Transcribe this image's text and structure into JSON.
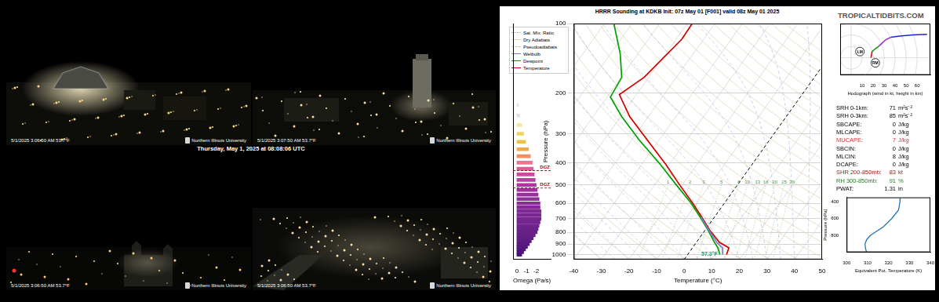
{
  "header": {
    "caption": "Thursday, May 1, 2025 at 08:08:06 UTC"
  },
  "webcams": [
    {
      "timestamp": "5/1/2025 3:06:50 AM 53.7°F",
      "logo": "Northern Illinois University"
    },
    {
      "timestamp": "5/1/2025 3:07:50 AM 53.7°F",
      "logo": "Northern Illinois University"
    },
    {
      "timestamp": "5/1/2025 3:06:50 AM 53.7°F",
      "logo": "Northern Illinois University"
    },
    {
      "timestamp": "5/1/2025 3:06:50 AM 53.7°F",
      "logo": "Northern Illinois University"
    }
  ],
  "sounding": {
    "site": "TROPICALTIDBITS.COM",
    "stats": [
      {
        "label": "SRH 0-1km:",
        "value": 71,
        "unit": "m²s⁻²"
      },
      {
        "label": "SRH 0-3km:",
        "value": 85,
        "unit": "m²s⁻²"
      },
      {
        "label": "SBCAPE:",
        "value": 0,
        "unit": "J/kg"
      },
      {
        "label": "MLCAPE:",
        "value": 0,
        "unit": "J/kg"
      },
      {
        "label": "MUCAPE:",
        "value": 7,
        "unit": "J/kg",
        "color": "#e03030"
      },
      {
        "label": "SBCIN:",
        "value": 0,
        "unit": "J/kg"
      },
      {
        "label": "MLCIN:",
        "value": 8,
        "unit": "J/kg"
      },
      {
        "label": "DCAPE:",
        "value": 0,
        "unit": "J/kg"
      },
      {
        "label": "SHR 200-850mb:",
        "value": 83,
        "unit": "kt",
        "color": "#a02020"
      },
      {
        "label": "RH 300-850mb:",
        "value": 91,
        "unit": "%",
        "color": "#208020"
      },
      {
        "label": "PWAT:",
        "value": 1.31,
        "unit": "in"
      }
    ]
  },
  "chart_data": [
    {
      "type": "skewt",
      "title": "HRRR Sounding at KDKB Init: 07z May 01 [F001] valid 08z May 01 2025",
      "x_label": "Temperature (°C)",
      "y_label": "Pressure (hPa)",
      "xlim": [
        -40,
        50
      ],
      "xticks": [
        -40,
        -30,
        -20,
        -10,
        0,
        10,
        20,
        30,
        40,
        50
      ],
      "ylim": [
        1050,
        100
      ],
      "yticks": [
        100,
        200,
        300,
        400,
        500,
        600,
        700,
        800,
        900,
        1000
      ],
      "log": "y",
      "grid": true,
      "legend": "upper left",
      "reference_lines": [
        {
          "name": "Sat. Mix. Ratio",
          "color": "#8fbf8f",
          "line_style": "dotted"
        },
        {
          "name": "Dry Adiabats",
          "color": "#e2cfa8",
          "line_style": "solid"
        },
        {
          "name": "Pseudoadiabats",
          "color": "#b4c0dc",
          "line_style": "dashed"
        }
      ],
      "mixing_ratio_lines": [
        1,
        2,
        3,
        5,
        8,
        10,
        13,
        16,
        20,
        25,
        30
      ],
      "annotation": "57.3°F",
      "series": [
        {
          "name": "Wetbulb",
          "color": "#7b7bd8",
          "x": [
            -4.9,
            1.5,
            7.4,
            10.9,
            12.7
          ],
          "y": [
            688,
            786,
            886,
            935,
            1000
          ]
        },
        {
          "name": "Dewpoint",
          "color": "#00a000",
          "x": [
            -86.6,
            -76.5,
            -69.8,
            -68.8,
            -59.6,
            -47.1,
            -33.3,
            -22.2,
            -12.5,
            -5.2,
            1.2,
            6.6,
            9.2,
            11.7
          ],
          "y": [
            100,
            135,
            171,
            208,
            253,
            320,
            407,
            499,
            594,
            688,
            786,
            886,
            935,
            1000
          ]
        },
        {
          "name": "Temperature",
          "color": "#d00000",
          "x": [
            -58.2,
            -57.9,
            -61.7,
            -66.2,
            -56.7,
            -44.2,
            -31.3,
            -21.0,
            -11.9,
            -4.6,
            1.8,
            8.4,
            13.2,
            14.1
          ],
          "y": [
            100,
            117,
            171,
            203,
            253,
            320,
            407,
            499,
            594,
            688,
            786,
            886,
            935,
            1000
          ]
        }
      ]
    },
    {
      "type": "bar",
      "orientation": "horizontal",
      "x_label": "Omega (Pa/s)",
      "xlim": [
        0.4,
        -3.5
      ],
      "xticks": [
        0,
        -1,
        -2
      ],
      "ylim": [
        1050,
        100
      ],
      "log": "y",
      "tick_labels": "x",
      "y": [
        225,
        250,
        275,
        300,
        325,
        350,
        375,
        400,
        425,
        450,
        475,
        500,
        525,
        550,
        575,
        600,
        625,
        650,
        675,
        700,
        725,
        750,
        775,
        800,
        825,
        850,
        875,
        900,
        925,
        950,
        975,
        1000
      ],
      "values": [
        -0.2,
        -0.3,
        -0.5,
        -0.7,
        -0.9,
        -1.2,
        -1.4,
        -1.6,
        -1.7,
        -1.8,
        -1.9,
        -2.0,
        -2.1,
        -2.2,
        -2.3,
        -2.4,
        -2.4,
        -2.5,
        -2.5,
        -2.5,
        -2.4,
        -2.3,
        -2.2,
        -2.1,
        -1.9,
        -1.7,
        -1.5,
        -1.3,
        -1.1,
        -0.9,
        -0.7,
        -0.5
      ],
      "colors": [
        "#e8e8e8",
        "#e0e0e0",
        "#f5e6a0",
        "#f2d35a",
        "#f0c040",
        "#f0a848",
        "#ee9060",
        "#e87890",
        "#d8609a",
        "#c84c9c",
        "#b8409e",
        "#a8389e",
        "#a0309c",
        "#98309a",
        "#90309a",
        "#8a2c98",
        "#842896",
        "#802894",
        "#7c2892",
        "#782690",
        "#74248e",
        "#70248c",
        "#6c228a",
        "#682088",
        "#641e86",
        "#601e84",
        "#5c1c82",
        "#581a80",
        "#54187e",
        "#50167c",
        "#4c147a",
        "#481278"
      ],
      "dgz": {
        "labels": [
          "DGZ",
          "DGZ"
        ],
        "y": [
          433,
          515
        ]
      }
    },
    {
      "type": "hodograph",
      "x_label": "Hodograph (wind in kt, height in km)",
      "xlim": [
        -10,
        72
      ],
      "xticks": [
        10,
        20,
        30,
        40,
        50,
        60
      ],
      "ylim": [
        -15,
        30
      ],
      "tick_labels": "x",
      "grid": true,
      "series": [
        {
          "color": "#d00000",
          "x": [
            18,
            19
          ],
          "y": [
            0,
            5.5
          ]
        },
        {
          "color": "#00a000",
          "x": [
            19,
            22,
            25
          ],
          "y": [
            5.5,
            8,
            10
          ]
        },
        {
          "color": "#9932cc",
          "x": [
            25,
            31,
            36
          ],
          "y": [
            10,
            15.5,
            18
          ]
        },
        {
          "color": "#2020e0",
          "x": [
            36,
            44,
            56,
            69
          ],
          "y": [
            18,
            19,
            20,
            20.5
          ]
        }
      ],
      "storm_motion": [
        {
          "label": "LM",
          "x": 8,
          "y": 5.5
        },
        {
          "label": "RM",
          "x": 22,
          "y": -4.4
        }
      ]
    },
    {
      "type": "line",
      "x_label": "Equivalent Pot. Temperature (K)",
      "y_label": "Pressure (hPa)",
      "xlim": [
        300,
        340
      ],
      "xticks": [
        300,
        310,
        320,
        330,
        340
      ],
      "ylim": [
        1000,
        350
      ],
      "yticks": [
        400,
        600,
        800
      ],
      "color": "#1f77b4",
      "x": [
        325.6,
        325.5,
        324.8,
        321.6,
        317.5,
        311.4,
        309.6,
        308.8,
        309.0,
        309.5
      ],
      "y": [
        360,
        400,
        500,
        600,
        700,
        800,
        850,
        900,
        950,
        1000
      ]
    }
  ]
}
